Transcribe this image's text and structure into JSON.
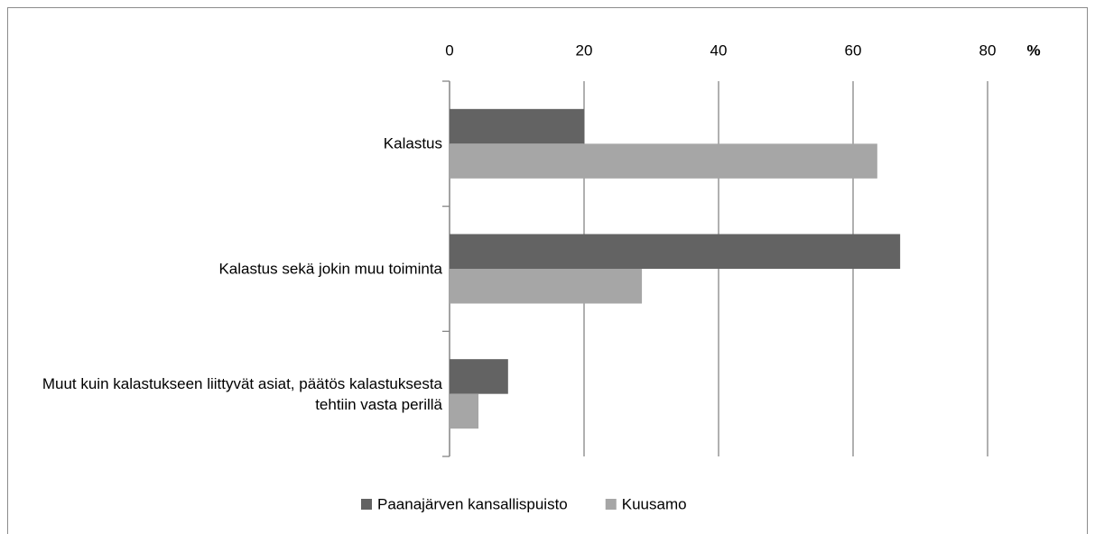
{
  "chart_data": {
    "type": "barh",
    "unit": "%",
    "categories": [
      "Kalastus",
      "Kalastus sekä jokin muu toiminta",
      "Muut kuin kalastukseen liittyvät asiat, päätös kalastuksesta tehtiin vasta perillä"
    ],
    "series": [
      {
        "name": "Paanajärven kansallispuisto",
        "color": "#636363",
        "values": [
          20,
          67,
          8.7
        ]
      },
      {
        "name": "Kuusamo",
        "color": "#a6a6a6",
        "values": [
          63.6,
          28.6,
          4.3
        ]
      }
    ],
    "xlim": [
      0,
      80
    ],
    "xticks": [
      0,
      20,
      40,
      60,
      80
    ],
    "grid": true,
    "legend": "bottom"
  }
}
